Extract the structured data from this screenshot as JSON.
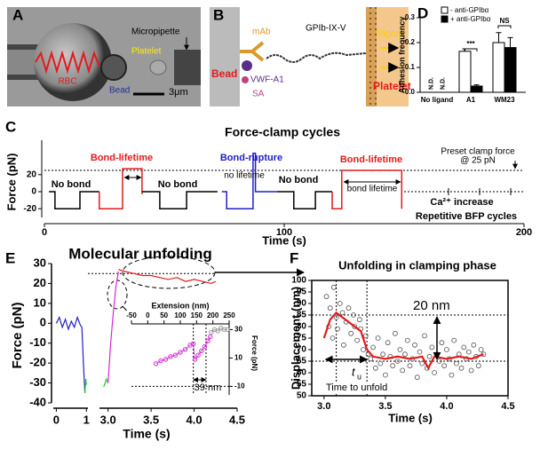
{
  "panel_a": {
    "letter": "A",
    "labels": {
      "rbc": "RBC",
      "bead": "Bead",
      "platelet": "Platelet",
      "micropipette": "Micropipette",
      "scale": "3μm"
    }
  },
  "panel_b": {
    "letter": "B",
    "labels": {
      "bead": "Bead",
      "mab": "mAb",
      "vwf": "VWF-A1",
      "sa": "SA",
      "gpib": "GPIb-IX-V",
      "signal": "Signal",
      "platelet": "Platelet"
    }
  },
  "chart_data": [
    {
      "letter": "C",
      "type": "line",
      "title": "Force-clamp cycles",
      "xlabel": "Time (s)",
      "ylabel": "Force (pN)",
      "xlim": [
        0,
        200
      ],
      "xticks": [
        0,
        100,
        200
      ],
      "ylim": [
        -30,
        60
      ],
      "yticks": [
        -20,
        0,
        20
      ],
      "clamp_force": 25,
      "series": [
        {
          "color": "#000000",
          "x": [
            1.9,
            4.4,
            4.4,
            14.8,
            14.8,
            22.9
          ],
          "y": [
            0,
            0,
            -20,
            -20,
            0,
            0
          ]
        },
        {
          "color": "#e41a1c",
          "x": [
            22.9,
            22.9,
            32.6,
            32.6,
            40.7,
            40.7
          ],
          "y": [
            0,
            -20,
            -20,
            27,
            27,
            -3
          ]
        },
        {
          "color": "#000000",
          "x": [
            40.7,
            48.1,
            48.1,
            59.3,
            59.3,
            72.2
          ],
          "y": [
            0,
            0,
            -20,
            -20,
            0,
            0
          ]
        },
        {
          "color": "#2020c8",
          "x": [
            74,
            76,
            76,
            87,
            87,
            88,
            88,
            97
          ],
          "y": [
            0,
            0,
            -20,
            -20,
            45,
            45,
            0,
            0
          ]
        },
        {
          "color": "#000000",
          "x": [
            97,
            104,
            104,
            113,
            113,
            120
          ],
          "y": [
            0,
            0,
            -20,
            -20,
            0,
            0
          ]
        },
        {
          "color": "#e41a1c",
          "x": [
            120,
            120,
            124,
            124,
            149,
            149
          ],
          "y": [
            0,
            -20,
            -20,
            25,
            25,
            -20
          ]
        }
      ],
      "annotations": [
        "No bond",
        "Bond-lifetime",
        "No bond",
        "Bond-rupture",
        "no lifetime",
        "No bond",
        "Bond-lifetime",
        "bond lifetime",
        "Preset clamp force",
        "@ 25 pN",
        "Ca²⁺ increase",
        "Repetitive BFP cycles"
      ]
    },
    {
      "letter": "D",
      "type": "bar",
      "ylabel": "Adhesion frequency",
      "categories": [
        "No ligand",
        "A1",
        "WM23"
      ],
      "ylim": [
        0,
        0.3
      ],
      "yticks": [
        {
          "value": 0,
          "label": "0.0"
        },
        0.1,
        0.2,
        0.3
      ],
      "series": [
        {
          "name": "- anti-GPIbα",
          "color": "#ffffff",
          "values": [
            null,
            0.165,
            0.2
          ],
          "errors": [
            null,
            0.01,
            0.04
          ]
        },
        {
          "name": "+ anti-GPIbα",
          "color": "#000000",
          "values": [
            null,
            0.025,
            0.18
          ],
          "errors": [
            null,
            0.005,
            0.04
          ]
        }
      ],
      "value_labels": [
        "N.D.",
        "N.D."
      ],
      "significance": [
        "***",
        "NS"
      ]
    },
    {
      "letter": "E",
      "type": "line",
      "title": "Molecular unfolding",
      "xlabel": "Time (s)",
      "ylabel": "Force (pN)",
      "xlim": [
        -0.1,
        4.5
      ],
      "xbreak": [
        1.05,
        2.9
      ],
      "xticks": [
        0,
        1,
        {
          "value": 3,
          "label": "3.0"
        },
        3.5,
        {
          "value": 4,
          "label": "4.0"
        },
        4.5
      ],
      "ylim": [
        -40,
        30
      ],
      "yticks": [
        -40,
        -30,
        -20,
        -10,
        0,
        10,
        20,
        30
      ],
      "reference_y": 25,
      "series": [
        {
          "color": "#2020c8",
          "x": [
            0,
            0.1,
            0.2,
            0.3,
            0.4,
            0.5,
            0.6,
            0.7,
            0.8,
            0.85,
            0.9,
            0.95
          ],
          "y": [
            0,
            3,
            -2,
            2,
            -3,
            1,
            -2,
            3,
            -1,
            -2,
            -20,
            -35
          ]
        },
        {
          "color": "#22cc22",
          "x": [
            0.95,
            0.98,
            1.0,
            null,
            2.95,
            2.98,
            3.0
          ],
          "y": [
            -35,
            -28,
            -31,
            null,
            -32,
            -28,
            -30
          ]
        },
        {
          "color": "#d52ad5",
          "x": [
            3.0,
            3.03,
            3.06,
            3.09,
            3.12
          ],
          "y": [
            -30,
            -10,
            5,
            18,
            26
          ]
        },
        {
          "color": "#e41a1c",
          "x": [
            3.12,
            3.2,
            3.3,
            3.4,
            3.5,
            3.6,
            3.7,
            3.8,
            3.9,
            4.0,
            4.1,
            4.2,
            4.25
          ],
          "y": [
            27,
            26,
            25,
            24,
            24,
            23,
            22,
            23,
            21,
            22,
            21,
            20,
            21
          ]
        }
      ],
      "inset": {
        "xlabel": "Extension (nm)",
        "ylabel": "Force (pN)",
        "xlim": [
          -50,
          250
        ],
        "xticks": [
          -50,
          0,
          50,
          100,
          150,
          200,
          250
        ],
        "ylim": [
          -16,
          34
        ],
        "yticks": [
          -10,
          10,
          30
        ],
        "marks": [
          140,
          179
        ],
        "annotation": "39 nm",
        "series": [
          {
            "color": "#d52ad5",
            "x": [
              25,
              40,
              55,
              70,
              85,
              100,
              115,
              130,
              140,
              145,
              155,
              165,
              175,
              185,
              192
            ],
            "y": [
              6,
              8,
              9,
              11,
              12,
              14,
              16,
              19,
              20,
              9,
              12,
              15,
              18,
              22,
              25
            ]
          },
          {
            "color": "#999999",
            "x": [
              195,
              205,
              215,
              225,
              235,
              245
            ],
            "y": [
              28,
              30,
              29,
              31,
              30,
              30
            ]
          }
        ]
      }
    },
    {
      "letter": "F",
      "type": "scatter",
      "title": "Unfolding in clamping phase",
      "xlabel": "Time (s)",
      "ylabel": "Displacement (nm)",
      "xlim": [
        2.9,
        4.5
      ],
      "xticks": [
        {
          "value": 3,
          "label": "3.0"
        },
        3.5,
        {
          "value": 4,
          "label": "4.0"
        },
        4.5
      ],
      "ylim": [
        50,
        100
      ],
      "yticks": [
        50,
        55,
        60,
        65,
        70,
        75,
        80,
        85,
        90,
        95,
        100
      ],
      "reference_lines": {
        "y": [
          85,
          65
        ],
        "x": [
          3.1,
          3.35
        ]
      },
      "points": {
        "x": [
          3.02,
          3.04,
          3.05,
          3.07,
          3.08,
          3.1,
          3.11,
          3.13,
          3.15,
          3.16,
          3.18,
          3.2,
          3.22,
          3.24,
          3.25,
          3.27,
          3.29,
          3.3,
          3.32,
          3.34,
          3.36,
          3.38,
          3.4,
          3.42,
          3.44,
          3.46,
          3.48,
          3.5,
          3.52,
          3.54,
          3.56,
          3.58,
          3.6,
          3.62,
          3.64,
          3.66,
          3.68,
          3.7,
          3.72,
          3.74,
          3.76,
          3.78,
          3.8,
          3.82,
          3.84,
          3.86,
          3.88,
          3.9,
          3.92,
          3.94,
          3.96,
          3.98,
          4.0,
          4.02,
          4.04,
          4.06,
          4.08,
          4.1,
          4.12,
          4.14,
          4.16,
          4.18,
          4.2,
          4.22,
          4.24,
          4.26,
          4.28,
          4.3
        ],
        "y": [
          93,
          80,
          88,
          75,
          97,
          84,
          79,
          90,
          86,
          72,
          82,
          88,
          77,
          85,
          80,
          74,
          83,
          79,
          70,
          76,
          68,
          66,
          71,
          62,
          75,
          64,
          68,
          59,
          73,
          67,
          63,
          77,
          65,
          70,
          61,
          68,
          74,
          63,
          66,
          72,
          58,
          69,
          64,
          76,
          62,
          67,
          71,
          60,
          68,
          65,
          73,
          63,
          70,
          66,
          59,
          74,
          64,
          68,
          62,
          71,
          66,
          69,
          61,
          72,
          67,
          63,
          70,
          68
        ]
      },
      "fit": {
        "color": "#e41a1c",
        "x": [
          3.0,
          3.05,
          3.1,
          3.15,
          3.2,
          3.25,
          3.3,
          3.35,
          3.4,
          3.5,
          3.6,
          3.7,
          3.8,
          3.85,
          3.9,
          4.0,
          4.1,
          4.2,
          4.3
        ],
        "y": [
          75,
          83,
          86,
          84,
          82,
          80,
          78,
          70,
          67,
          66,
          67,
          66,
          67,
          62,
          67,
          66,
          67,
          66,
          68
        ]
      },
      "annotations": {
        "step": "20 nm",
        "tu": "t",
        "tu_sub": "u",
        "unfold": "Time to unfold"
      }
    }
  ]
}
